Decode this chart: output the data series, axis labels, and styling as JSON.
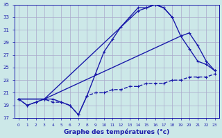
{
  "title": "Graphe des températures (°c)",
  "bg_color": "#cce8e8",
  "grid_color": "#aaaacc",
  "line_color": "#1a1aaa",
  "xlim": [
    -0.5,
    23.5
  ],
  "ylim": [
    17,
    35
  ],
  "xticks": [
    0,
    1,
    2,
    3,
    4,
    5,
    6,
    7,
    8,
    9,
    10,
    11,
    12,
    13,
    14,
    15,
    16,
    17,
    18,
    19,
    20,
    21,
    22,
    23
  ],
  "yticks": [
    17,
    19,
    21,
    23,
    25,
    27,
    29,
    31,
    33,
    35
  ],
  "series": [
    {
      "x": [
        0,
        1,
        2,
        3,
        4,
        5,
        6,
        7,
        8,
        9,
        10,
        11,
        12,
        13,
        14,
        15,
        16,
        17,
        18
      ],
      "y": [
        20.0,
        19.0,
        19.5,
        20.0,
        20.0,
        19.5,
        19.0,
        17.5,
        20.5,
        24.0,
        27.5,
        29.5,
        31.5,
        33.0,
        34.5,
        34.5,
        35.0,
        34.5,
        33.0
      ],
      "ls": "-",
      "lw": 1.0
    },
    {
      "x": [
        0,
        3,
        14,
        15,
        16,
        17,
        18,
        19,
        20,
        21,
        22,
        23
      ],
      "y": [
        20.0,
        20.0,
        34.0,
        34.5,
        35.0,
        34.5,
        33.0,
        30.0,
        28.0,
        26.0,
        25.5,
        24.5
      ],
      "ls": "-",
      "lw": 1.0
    },
    {
      "x": [
        0,
        3,
        19,
        20,
        21,
        22,
        23
      ],
      "y": [
        20.0,
        20.0,
        30.0,
        30.5,
        28.5,
        26.0,
        24.5
      ],
      "ls": "-",
      "lw": 1.0
    },
    {
      "x": [
        0,
        1,
        2,
        3,
        4,
        5,
        6,
        7,
        8,
        9,
        10,
        11,
        12,
        13,
        14,
        15,
        16,
        17,
        18,
        19,
        20,
        21,
        22,
        23
      ],
      "y": [
        20.0,
        19.0,
        19.5,
        20.0,
        19.5,
        19.5,
        19.0,
        17.5,
        20.5,
        21.0,
        21.0,
        21.5,
        21.5,
        22.0,
        22.0,
        22.5,
        22.5,
        22.5,
        23.0,
        23.0,
        23.5,
        23.5,
        23.5,
        24.0
      ],
      "ls": "--",
      "lw": 1.0
    }
  ]
}
